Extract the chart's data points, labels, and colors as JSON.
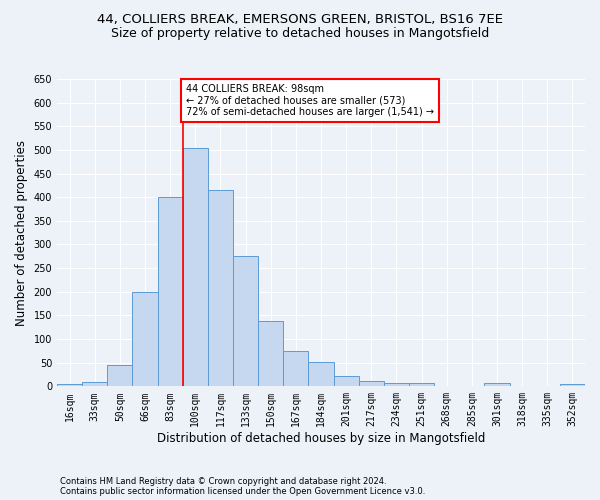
{
  "title1": "44, COLLIERS BREAK, EMERSONS GREEN, BRISTOL, BS16 7EE",
  "title2": "Size of property relative to detached houses in Mangotsfield",
  "xlabel": "Distribution of detached houses by size in Mangotsfield",
  "ylabel": "Number of detached properties",
  "categories": [
    "16sqm",
    "33sqm",
    "50sqm",
    "66sqm",
    "83sqm",
    "100sqm",
    "117sqm",
    "133sqm",
    "150sqm",
    "167sqm",
    "184sqm",
    "201sqm",
    "217sqm",
    "234sqm",
    "251sqm",
    "268sqm",
    "285sqm",
    "301sqm",
    "318sqm",
    "335sqm",
    "352sqm"
  ],
  "values": [
    5,
    10,
    45,
    200,
    400,
    505,
    415,
    275,
    138,
    75,
    52,
    22,
    12,
    8,
    8,
    0,
    0,
    6,
    0,
    0,
    5
  ],
  "bar_color": "#c5d8f0",
  "bar_edge_color": "#5b9bd5",
  "annotation_text_line1": "44 COLLIERS BREAK: 98sqm",
  "annotation_text_line2": "← 27% of detached houses are smaller (573)",
  "annotation_text_line3": "72% of semi-detached houses are larger (1,541) →",
  "annotation_box_color": "white",
  "annotation_box_edge_color": "red",
  "vline_color": "red",
  "ylim": [
    0,
    650
  ],
  "yticks": [
    0,
    50,
    100,
    150,
    200,
    250,
    300,
    350,
    400,
    450,
    500,
    550,
    600,
    650
  ],
  "footer1": "Contains HM Land Registry data © Crown copyright and database right 2024.",
  "footer2": "Contains public sector information licensed under the Open Government Licence v3.0.",
  "bg_color": "#edf2f9",
  "plot_bg_color": "#edf2f9",
  "title_fontsize": 9.5,
  "subtitle_fontsize": 9,
  "tick_fontsize": 7,
  "label_fontsize": 8.5,
  "footer_fontsize": 6
}
